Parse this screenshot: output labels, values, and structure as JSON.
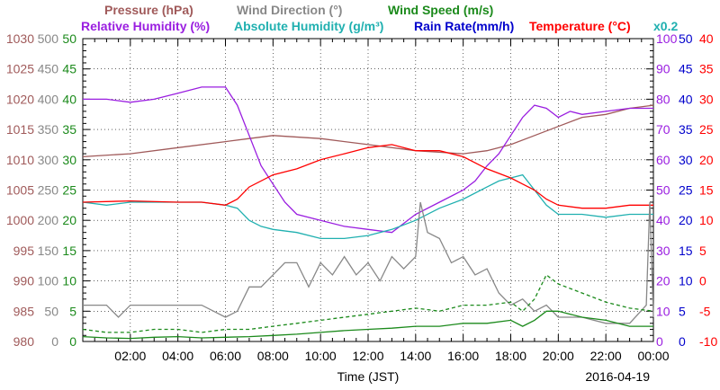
{
  "chart_data": {
    "type": "line",
    "xlabel": "Time (JST)",
    "date_label": "2016-04-19",
    "x_ticks": [
      "02:00",
      "04:00",
      "06:00",
      "08:00",
      "10:00",
      "12:00",
      "14:00",
      "16:00",
      "18:00",
      "20:00",
      "22:00",
      "00:00"
    ],
    "xlim": [
      0,
      24
    ],
    "header": {
      "row1": [
        {
          "text": "Pressure (hPa)",
          "color": "#a05a5a"
        },
        {
          "text": "Wind Direction (°)",
          "color": "#888888"
        },
        {
          "text": "Wind Speed (m/s)",
          "color": "#1b8a1b"
        }
      ],
      "row2": [
        {
          "text": "Relative Humidity (%)",
          "color": "#9a1ee0"
        },
        {
          "text": "Absolute Humidity (g/m³)",
          "color": "#20b0b0"
        },
        {
          "text": "Rain Rate(mm/h)",
          "color": "#0000cc"
        },
        {
          "text": "Temperature (°C)",
          "color": "#ff0000"
        },
        {
          "text": "x0.2",
          "color": "#20b0b0"
        }
      ]
    },
    "axes": {
      "pressure": {
        "color": "#a05a5a",
        "range": [
          980,
          1030
        ],
        "ticks": [
          "1030",
          "1025",
          "1020",
          "1015",
          "1010",
          "1005",
          "1000",
          "995",
          "990",
          "985",
          "980"
        ]
      },
      "wind_direction": {
        "color": "#888888",
        "range": [
          0,
          500
        ],
        "ticks": [
          "500",
          "450",
          "400",
          "350",
          "300",
          "250",
          "200",
          "150",
          "100",
          "50",
          "0"
        ]
      },
      "wind_speed": {
        "color": "#1b8a1b",
        "range": [
          0,
          50
        ],
        "ticks": [
          "50",
          "45",
          "40",
          "35",
          "30",
          "25",
          "20",
          "15",
          "10",
          "5",
          "0"
        ]
      },
      "relative_humidity": {
        "color": "#9a1ee0",
        "range": [
          0,
          100
        ],
        "ticks": [
          "100",
          "90",
          "80",
          "70",
          "60",
          "50",
          "40",
          "30",
          "20",
          "10",
          "0"
        ]
      },
      "rain_rate": {
        "color": "#0000cc",
        "range": [
          0,
          50
        ],
        "ticks": [
          "50",
          "45",
          "40",
          "35",
          "30",
          "25",
          "20",
          "15",
          "10",
          "5",
          "0"
        ]
      },
      "temperature": {
        "color": "#ff0000",
        "range": [
          -10,
          40
        ],
        "ticks": [
          "40",
          "35",
          "30",
          "25",
          "20",
          "15",
          "10",
          "5",
          "0",
          "-5",
          "-10"
        ]
      }
    },
    "series": [
      {
        "key": "pressure",
        "axis": "pressure",
        "color": "#a05a5a",
        "points": [
          [
            0,
            1010.5
          ],
          [
            2,
            1011.0
          ],
          [
            4,
            1012.0
          ],
          [
            6,
            1013.0
          ],
          [
            7,
            1013.5
          ],
          [
            8,
            1014.0
          ],
          [
            10,
            1013.5
          ],
          [
            12,
            1012.5
          ],
          [
            14,
            1011.5
          ],
          [
            16,
            1011.0
          ],
          [
            17,
            1011.5
          ],
          [
            18,
            1012.5
          ],
          [
            19,
            1014.0
          ],
          [
            20,
            1015.5
          ],
          [
            21,
            1017.0
          ],
          [
            22,
            1017.5
          ],
          [
            23,
            1018.5
          ],
          [
            24,
            1019.0
          ]
        ]
      },
      {
        "key": "relative_humidity",
        "axis": "relative_humidity",
        "color": "#9a1ee0",
        "points": [
          [
            0,
            80
          ],
          [
            1,
            80
          ],
          [
            2,
            79
          ],
          [
            3,
            80
          ],
          [
            4,
            82
          ],
          [
            5,
            84
          ],
          [
            6,
            84
          ],
          [
            6.5,
            78
          ],
          [
            7,
            68
          ],
          [
            7.5,
            58
          ],
          [
            8,
            52
          ],
          [
            8.5,
            46
          ],
          [
            9,
            42
          ],
          [
            10,
            40
          ],
          [
            11,
            38
          ],
          [
            12,
            37
          ],
          [
            13,
            36
          ],
          [
            14,
            42
          ],
          [
            15,
            46
          ],
          [
            16,
            50
          ],
          [
            16.5,
            53
          ],
          [
            17,
            58
          ],
          [
            17.5,
            62
          ],
          [
            18,
            68
          ],
          [
            18.5,
            74
          ],
          [
            19,
            78
          ],
          [
            19.5,
            77
          ],
          [
            20,
            74
          ],
          [
            20.5,
            76
          ],
          [
            21,
            75
          ],
          [
            22,
            76
          ],
          [
            23,
            77
          ],
          [
            24,
            77
          ]
        ]
      },
      {
        "key": "absolute_humidity",
        "axis": "relative_humidity",
        "color": "#20b0b0",
        "points": [
          [
            0,
            46
          ],
          [
            1,
            45
          ],
          [
            2,
            46
          ],
          [
            3,
            46
          ],
          [
            4,
            46
          ],
          [
            5,
            46
          ],
          [
            6,
            45
          ],
          [
            6.5,
            44
          ],
          [
            7,
            40
          ],
          [
            7.5,
            38
          ],
          [
            8,
            37
          ],
          [
            9,
            36
          ],
          [
            10,
            34
          ],
          [
            11,
            34
          ],
          [
            12,
            35
          ],
          [
            13,
            37
          ],
          [
            14,
            40
          ],
          [
            15,
            44
          ],
          [
            16,
            47
          ],
          [
            17,
            51
          ],
          [
            17.5,
            53
          ],
          [
            18,
            54
          ],
          [
            18.5,
            55
          ],
          [
            19,
            50
          ],
          [
            19.5,
            45
          ],
          [
            20,
            42
          ],
          [
            21,
            42
          ],
          [
            22,
            41
          ],
          [
            23,
            42
          ],
          [
            24,
            42
          ]
        ]
      },
      {
        "key": "temperature",
        "axis": "temperature",
        "color": "#ff0000",
        "points": [
          [
            0,
            13.0
          ],
          [
            2,
            13.2
          ],
          [
            4,
            13.0
          ],
          [
            5,
            13.0
          ],
          [
            6,
            12.5
          ],
          [
            6.5,
            13.5
          ],
          [
            7,
            15.5
          ],
          [
            8,
            17.5
          ],
          [
            9,
            18.5
          ],
          [
            10,
            20.0
          ],
          [
            11,
            21.0
          ],
          [
            12,
            22.0
          ],
          [
            13,
            22.5
          ],
          [
            14,
            21.5
          ],
          [
            15,
            21.5
          ],
          [
            16,
            20.5
          ],
          [
            17,
            18.5
          ],
          [
            18,
            17.0
          ],
          [
            18.5,
            16.0
          ],
          [
            19,
            15.0
          ],
          [
            19.5,
            13.5
          ],
          [
            20,
            12.5
          ],
          [
            21,
            12.0
          ],
          [
            22,
            12.0
          ],
          [
            23,
            12.5
          ],
          [
            24,
            12.5
          ]
        ]
      },
      {
        "key": "wind_direction",
        "axis": "wind_direction",
        "color": "#888888",
        "points": [
          [
            0,
            60
          ],
          [
            1,
            60
          ],
          [
            1.5,
            40
          ],
          [
            2,
            60
          ],
          [
            3,
            60
          ],
          [
            4,
            60
          ],
          [
            5,
            60
          ],
          [
            6,
            40
          ],
          [
            6.5,
            50
          ],
          [
            7,
            90
          ],
          [
            7.5,
            90
          ],
          [
            8,
            110
          ],
          [
            8.5,
            130
          ],
          [
            9,
            130
          ],
          [
            9.5,
            90
          ],
          [
            10,
            130
          ],
          [
            10.5,
            110
          ],
          [
            11,
            140
          ],
          [
            11.5,
            110
          ],
          [
            12,
            130
          ],
          [
            12.5,
            100
          ],
          [
            13,
            140
          ],
          [
            13.5,
            120
          ],
          [
            14,
            140
          ],
          [
            14.2,
            230
          ],
          [
            14.5,
            180
          ],
          [
            15,
            170
          ],
          [
            15.5,
            130
          ],
          [
            16,
            140
          ],
          [
            16.5,
            110
          ],
          [
            17,
            120
          ],
          [
            17.5,
            80
          ],
          [
            18,
            60
          ],
          [
            18.5,
            70
          ],
          [
            19,
            50
          ],
          [
            19.5,
            60
          ],
          [
            20,
            40
          ],
          [
            21,
            40
          ],
          [
            22,
            30
          ],
          [
            23,
            30
          ],
          [
            23.7,
            60
          ],
          [
            23.85,
            230
          ],
          [
            24,
            40
          ]
        ]
      },
      {
        "key": "wind_speed_gust",
        "axis": "wind_speed",
        "color": "#1b8a1b",
        "style": "dashed",
        "points": [
          [
            0,
            2.0
          ],
          [
            1,
            1.5
          ],
          [
            2,
            1.5
          ],
          [
            3,
            2.0
          ],
          [
            4,
            2.0
          ],
          [
            5,
            1.5
          ],
          [
            6,
            2.0
          ],
          [
            7,
            2.0
          ],
          [
            8,
            2.5
          ],
          [
            9,
            3.0
          ],
          [
            10,
            3.5
          ],
          [
            11,
            4.0
          ],
          [
            12,
            4.5
          ],
          [
            13,
            5.0
          ],
          [
            14,
            5.5
          ],
          [
            15,
            5.0
          ],
          [
            16,
            6.0
          ],
          [
            17,
            6.0
          ],
          [
            18,
            6.5
          ],
          [
            18.5,
            5.0
          ],
          [
            19,
            7.0
          ],
          [
            19.5,
            11.0
          ],
          [
            20,
            9.5
          ],
          [
            21,
            8.0
          ],
          [
            22,
            6.5
          ],
          [
            23,
            5.5
          ],
          [
            24,
            5.0
          ]
        ]
      },
      {
        "key": "wind_speed",
        "axis": "wind_speed",
        "color": "#1b8a1b",
        "points": [
          [
            0,
            0.8
          ],
          [
            1,
            0.6
          ],
          [
            2,
            0.5
          ],
          [
            3,
            0.7
          ],
          [
            4,
            0.8
          ],
          [
            5,
            0.6
          ],
          [
            6,
            0.7
          ],
          [
            7,
            0.8
          ],
          [
            8,
            1.0
          ],
          [
            9,
            1.2
          ],
          [
            10,
            1.5
          ],
          [
            11,
            1.8
          ],
          [
            12,
            2.0
          ],
          [
            13,
            2.2
          ],
          [
            14,
            2.5
          ],
          [
            15,
            2.5
          ],
          [
            16,
            3.0
          ],
          [
            17,
            3.0
          ],
          [
            18,
            3.5
          ],
          [
            18.5,
            2.5
          ],
          [
            19,
            3.5
          ],
          [
            19.5,
            5.0
          ],
          [
            20,
            5.0
          ],
          [
            21,
            4.0
          ],
          [
            22,
            3.5
          ],
          [
            23,
            2.5
          ],
          [
            24,
            2.5
          ]
        ]
      }
    ]
  }
}
